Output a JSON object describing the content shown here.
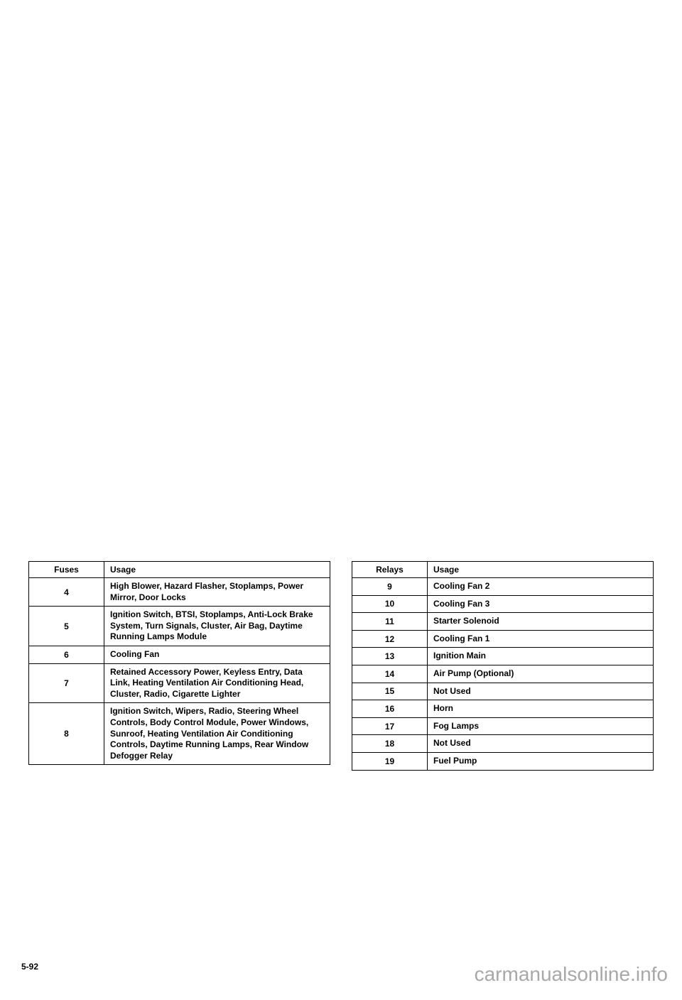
{
  "left_table": {
    "headers": {
      "col1": "Fuses",
      "col2": "Usage"
    },
    "rows": [
      {
        "num": "4",
        "usage": "High Blower, Hazard Flasher, Stoplamps, Power Mirror, Door Locks"
      },
      {
        "num": "5",
        "usage": "Ignition Switch, BTSI, Stoplamps, Anti-Lock Brake System, Turn Signals, Cluster, Air Bag, Daytime Running Lamps Module"
      },
      {
        "num": "6",
        "usage": "Cooling Fan"
      },
      {
        "num": "7",
        "usage": "Retained Accessory Power, Keyless Entry, Data Link, Heating Ventilation Air Conditioning Head, Cluster, Radio, Cigarette Lighter"
      },
      {
        "num": "8",
        "usage": "Ignition Switch, Wipers, Radio, Steering Wheel Controls, Body Control Module, Power Windows, Sunroof, Heating Ventilation Air Conditioning Controls, Daytime Running Lamps, Rear Window Defogger Relay"
      }
    ]
  },
  "right_table": {
    "headers": {
      "col1": "Relays",
      "col2": "Usage"
    },
    "rows": [
      {
        "num": "9",
        "usage": "Cooling Fan 2"
      },
      {
        "num": "10",
        "usage": "Cooling Fan 3"
      },
      {
        "num": "11",
        "usage": "Starter Solenoid"
      },
      {
        "num": "12",
        "usage": "Cooling Fan 1"
      },
      {
        "num": "13",
        "usage": "Ignition Main"
      },
      {
        "num": "14",
        "usage": "Air Pump (Optional)"
      },
      {
        "num": "15",
        "usage": "Not Used"
      },
      {
        "num": "16",
        "usage": "Horn"
      },
      {
        "num": "17",
        "usage": "Fog Lamps"
      },
      {
        "num": "18",
        "usage": "Not Used"
      },
      {
        "num": "19",
        "usage": "Fuel Pump"
      }
    ]
  },
  "page_number": "5-92",
  "watermark": "carmanualsonline.info",
  "styling": {
    "background_color": "#ffffff",
    "text_color": "#000000",
    "border_color": "#000000",
    "font_size_table": 12,
    "font_size_watermark": 28,
    "watermark_color": "#a8a8a8"
  }
}
